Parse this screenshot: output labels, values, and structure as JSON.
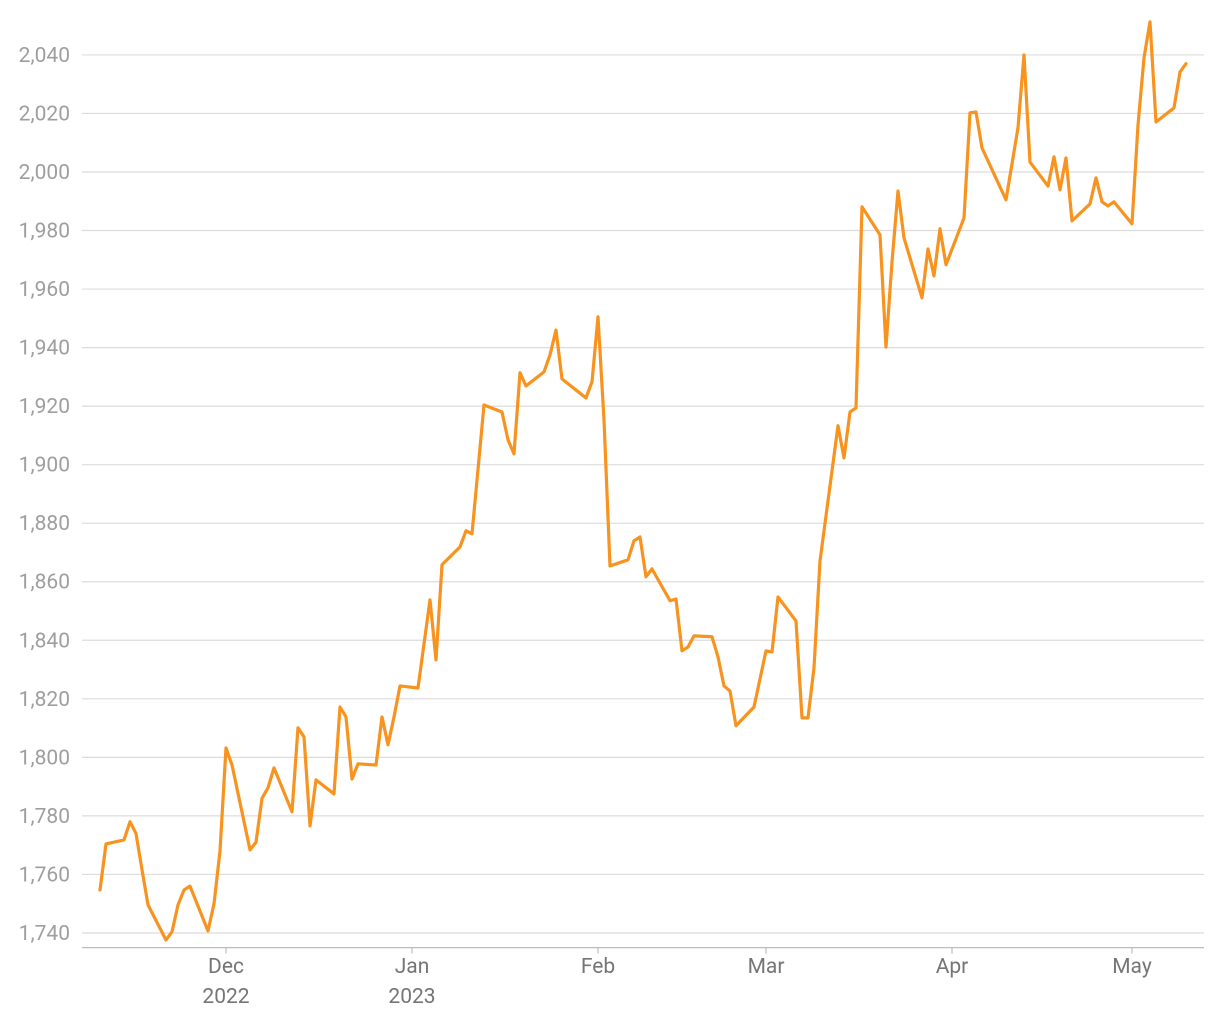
{
  "chart_data": {
    "type": "line",
    "x": [
      "2022-11-10",
      "2022-11-11",
      "2022-11-14",
      "2022-11-15",
      "2022-11-16",
      "2022-11-17",
      "2022-11-18",
      "2022-11-21",
      "2022-11-22",
      "2022-11-23",
      "2022-11-24",
      "2022-11-25",
      "2022-11-28",
      "2022-11-29",
      "2022-11-30",
      "2022-12-01",
      "2022-12-02",
      "2022-12-05",
      "2022-12-06",
      "2022-12-07",
      "2022-12-08",
      "2022-12-09",
      "2022-12-12",
      "2022-12-13",
      "2022-12-14",
      "2022-12-15",
      "2022-12-16",
      "2022-12-19",
      "2022-12-20",
      "2022-12-21",
      "2022-12-22",
      "2022-12-23",
      "2022-12-26",
      "2022-12-27",
      "2022-12-28",
      "2022-12-29",
      "2022-12-30",
      "2023-01-02",
      "2023-01-04",
      "2023-01-05",
      "2023-01-06",
      "2023-01-09",
      "2023-01-10",
      "2023-01-11",
      "2023-01-13",
      "2023-01-16",
      "2023-01-17",
      "2023-01-18",
      "2023-01-19",
      "2023-01-20",
      "2023-01-23",
      "2023-01-24",
      "2023-01-25",
      "2023-01-26",
      "2023-01-30",
      "2023-01-31",
      "2023-02-01",
      "2023-02-02",
      "2023-02-03",
      "2023-02-06",
      "2023-02-07",
      "2023-02-08",
      "2023-02-09",
      "2023-02-10",
      "2023-02-13",
      "2023-02-14",
      "2023-02-15",
      "2023-02-16",
      "2023-02-17",
      "2023-02-20",
      "2023-02-21",
      "2023-02-22",
      "2023-02-23",
      "2023-02-24",
      "2023-02-27",
      "2023-03-01",
      "2023-03-02",
      "2023-03-03",
      "2023-03-06",
      "2023-03-07",
      "2023-03-08",
      "2023-03-09",
      "2023-03-10",
      "2023-03-13",
      "2023-03-14",
      "2023-03-15",
      "2023-03-16",
      "2023-03-17",
      "2023-03-20",
      "2023-03-21",
      "2023-03-22",
      "2023-03-23",
      "2023-03-24",
      "2023-03-27",
      "2023-03-28",
      "2023-03-29",
      "2023-03-30",
      "2023-03-31",
      "2023-04-03",
      "2023-04-04",
      "2023-04-05",
      "2023-04-06",
      "2023-04-10",
      "2023-04-12",
      "2023-04-13",
      "2023-04-14",
      "2023-04-17",
      "2023-04-18",
      "2023-04-19",
      "2023-04-20",
      "2023-04-21",
      "2023-04-24",
      "2023-04-25",
      "2023-04-26",
      "2023-04-27",
      "2023-04-28",
      "2023-05-01",
      "2023-05-02",
      "2023-05-03",
      "2023-05-04",
      "2023-05-05",
      "2023-05-08",
      "2023-05-09",
      "2023-05-10"
    ],
    "series": [
      {
        "color": "#f7931e",
        "values": [
          1754.7,
          1770.4,
          1771.8,
          1778,
          1774,
          1761.6,
          1749.6,
          1737.6,
          1740.4,
          1749.6,
          1754.7,
          1756,
          1740.7,
          1750,
          1768,
          1803.2,
          1797.4,
          1768.4,
          1771,
          1786,
          1789.6,
          1796.4,
          1781.4,
          1810.1,
          1807,
          1776.6,
          1792.3,
          1787.5,
          1817.2,
          1813.8,
          1792.6,
          1797.8,
          1797.4,
          1813.8,
          1804.3,
          1813.8,
          1824.4,
          1823.7,
          1853.8,
          1833.3,
          1865.8,
          1871.9,
          1877.4,
          1876.4,
          1920.4,
          1918,
          1908.5,
          1903.7,
          1931.4,
          1926.9,
          1931.7,
          1937.5,
          1946,
          1929.3,
          1922.8,
          1928.3,
          1950.5,
          1915.3,
          1865.4,
          1867.5,
          1874,
          1875.3,
          1861.7,
          1864.4,
          1853.5,
          1854.1,
          1836.4,
          1837.7,
          1841.5,
          1841.2,
          1834.3,
          1824.4,
          1822.7,
          1810.8,
          1817.2,
          1836.4,
          1836,
          1854.8,
          1846.6,
          1813.5,
          1813.5,
          1830.6,
          1867.1,
          1913.3,
          1902.3,
          1918,
          1919.4,
          1988.1,
          1978.5,
          1940.2,
          1969.3,
          1993.5,
          1977.5,
          1957,
          1973.7,
          1964.5,
          1980.6,
          1968.3,
          1984.3,
          2020.2,
          2020.5,
          2008.2,
          1990.5,
          2015.1,
          2040,
          2003.4,
          1995.2,
          2005.2,
          1993.9,
          2004.8,
          1983.3,
          1989.1,
          1998,
          1989.8,
          1988.4,
          1989.8,
          1982.3,
          2016.1,
          2039,
          2051.3,
          2017.1,
          2021.9,
          2034.2,
          2037
        ]
      }
    ],
    "xlim": [
      "2022-11-07",
      "2023-05-13"
    ],
    "xticks": [
      {
        "value": "2022-12-01",
        "label": "Dec\n2022"
      },
      {
        "value": "2023-01-01",
        "label": "Jan\n2023"
      },
      {
        "value": "2023-02-01",
        "label": "Feb"
      },
      {
        "value": "2023-03-01",
        "label": "Mar"
      },
      {
        "value": "2023-04-01",
        "label": "Apr"
      },
      {
        "value": "2023-05-01",
        "label": "May"
      }
    ],
    "ylim": [
      1735,
      2052
    ],
    "yticks": [
      {
        "value": 1740,
        "label": "1,740"
      },
      {
        "value": 1760,
        "label": "1,760"
      },
      {
        "value": 1780,
        "label": "1,780"
      },
      {
        "value": 1800,
        "label": "1,800"
      },
      {
        "value": 1820,
        "label": "1,820"
      },
      {
        "value": 1840,
        "label": "1,840"
      },
      {
        "value": 1860,
        "label": "1,860"
      },
      {
        "value": 1880,
        "label": "1,880"
      },
      {
        "value": 1900,
        "label": "1,900"
      },
      {
        "value": 1920,
        "label": "1,920"
      },
      {
        "value": 1940,
        "label": "1,940"
      },
      {
        "value": 1960,
        "label": "1,960"
      },
      {
        "value": 1980,
        "label": "1,980"
      },
      {
        "value": 2000,
        "label": "2,000"
      },
      {
        "value": 2020,
        "label": "2,020"
      },
      {
        "value": 2040,
        "label": "2,040"
      }
    ],
    "grid": true
  }
}
